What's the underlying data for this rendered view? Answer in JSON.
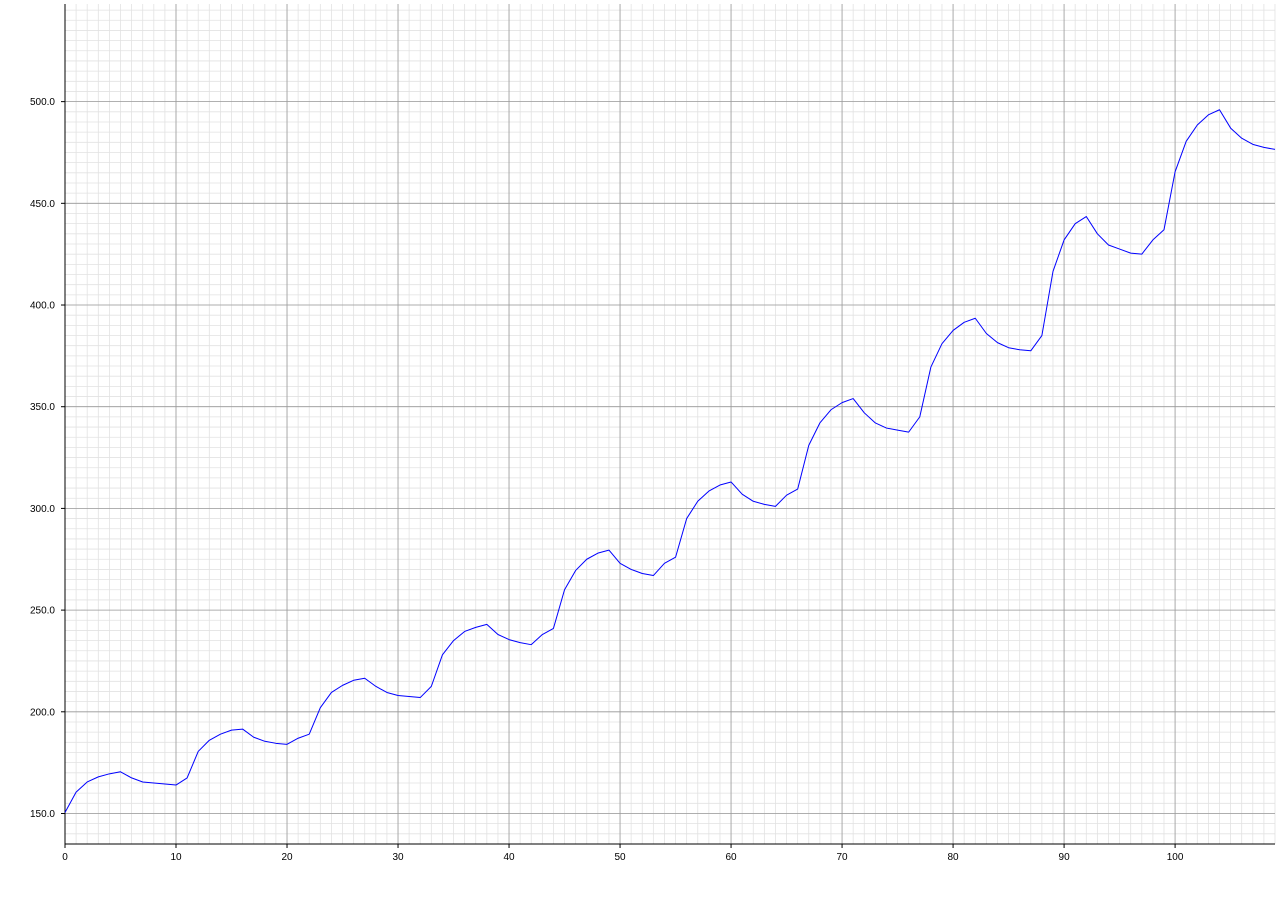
{
  "chart_data": {
    "type": "line",
    "title": "",
    "xlabel": "",
    "ylabel": "",
    "xlim": [
      0,
      109
    ],
    "ylim": [
      135,
      548
    ],
    "grid": true,
    "legend": "none",
    "x_ticks": [
      0,
      10,
      20,
      30,
      40,
      50,
      60,
      70,
      80,
      90,
      100
    ],
    "x_tick_labels": [
      "0",
      "10",
      "20",
      "30",
      "40",
      "50",
      "60",
      "70",
      "80",
      "90",
      "100"
    ],
    "y_ticks": [
      150,
      200,
      250,
      300,
      350,
      400,
      450,
      500
    ],
    "y_tick_labels": [
      "150.0",
      "200.0",
      "250.0",
      "300.0",
      "350.0",
      "400.0",
      "450.0",
      "500.0"
    ],
    "x_minor_step": 1,
    "y_minor_step": 5,
    "line_color": "#0000ff",
    "series": [
      {
        "values": [
          150.5,
          160.5,
          165.5,
          168,
          169.5,
          170.5,
          167.5,
          165.5,
          165,
          164.5,
          164,
          167.5,
          180.5,
          186,
          189,
          191,
          191.5,
          187.5,
          185.5,
          184.5,
          184,
          187,
          189,
          202,
          209.5,
          213,
          215.5,
          216.5,
          212.5,
          209.5,
          208,
          207.5,
          207,
          212.5,
          228,
          235,
          239.5,
          241.5,
          243,
          238,
          235.5,
          234,
          233,
          238,
          241,
          260,
          269.5,
          275,
          278,
          279.5,
          273,
          270,
          268,
          267,
          273,
          276,
          295,
          303.5,
          308.5,
          311.5,
          313,
          307,
          303.5,
          302,
          301,
          306.5,
          309.5,
          331,
          342,
          348.5,
          352,
          354,
          347,
          342,
          339.5,
          338.5,
          337.5,
          345,
          369.5,
          381,
          387.5,
          391.5,
          393.5,
          386,
          381.5,
          379,
          378,
          377.5,
          385,
          416.5,
          432,
          440,
          443.5,
          435,
          429.5,
          427.5,
          425.5,
          425,
          432,
          437,
          465.5,
          480.5,
          488.5,
          493.5,
          496,
          487,
          482,
          479,
          477.5,
          476.5
        ]
      }
    ]
  }
}
